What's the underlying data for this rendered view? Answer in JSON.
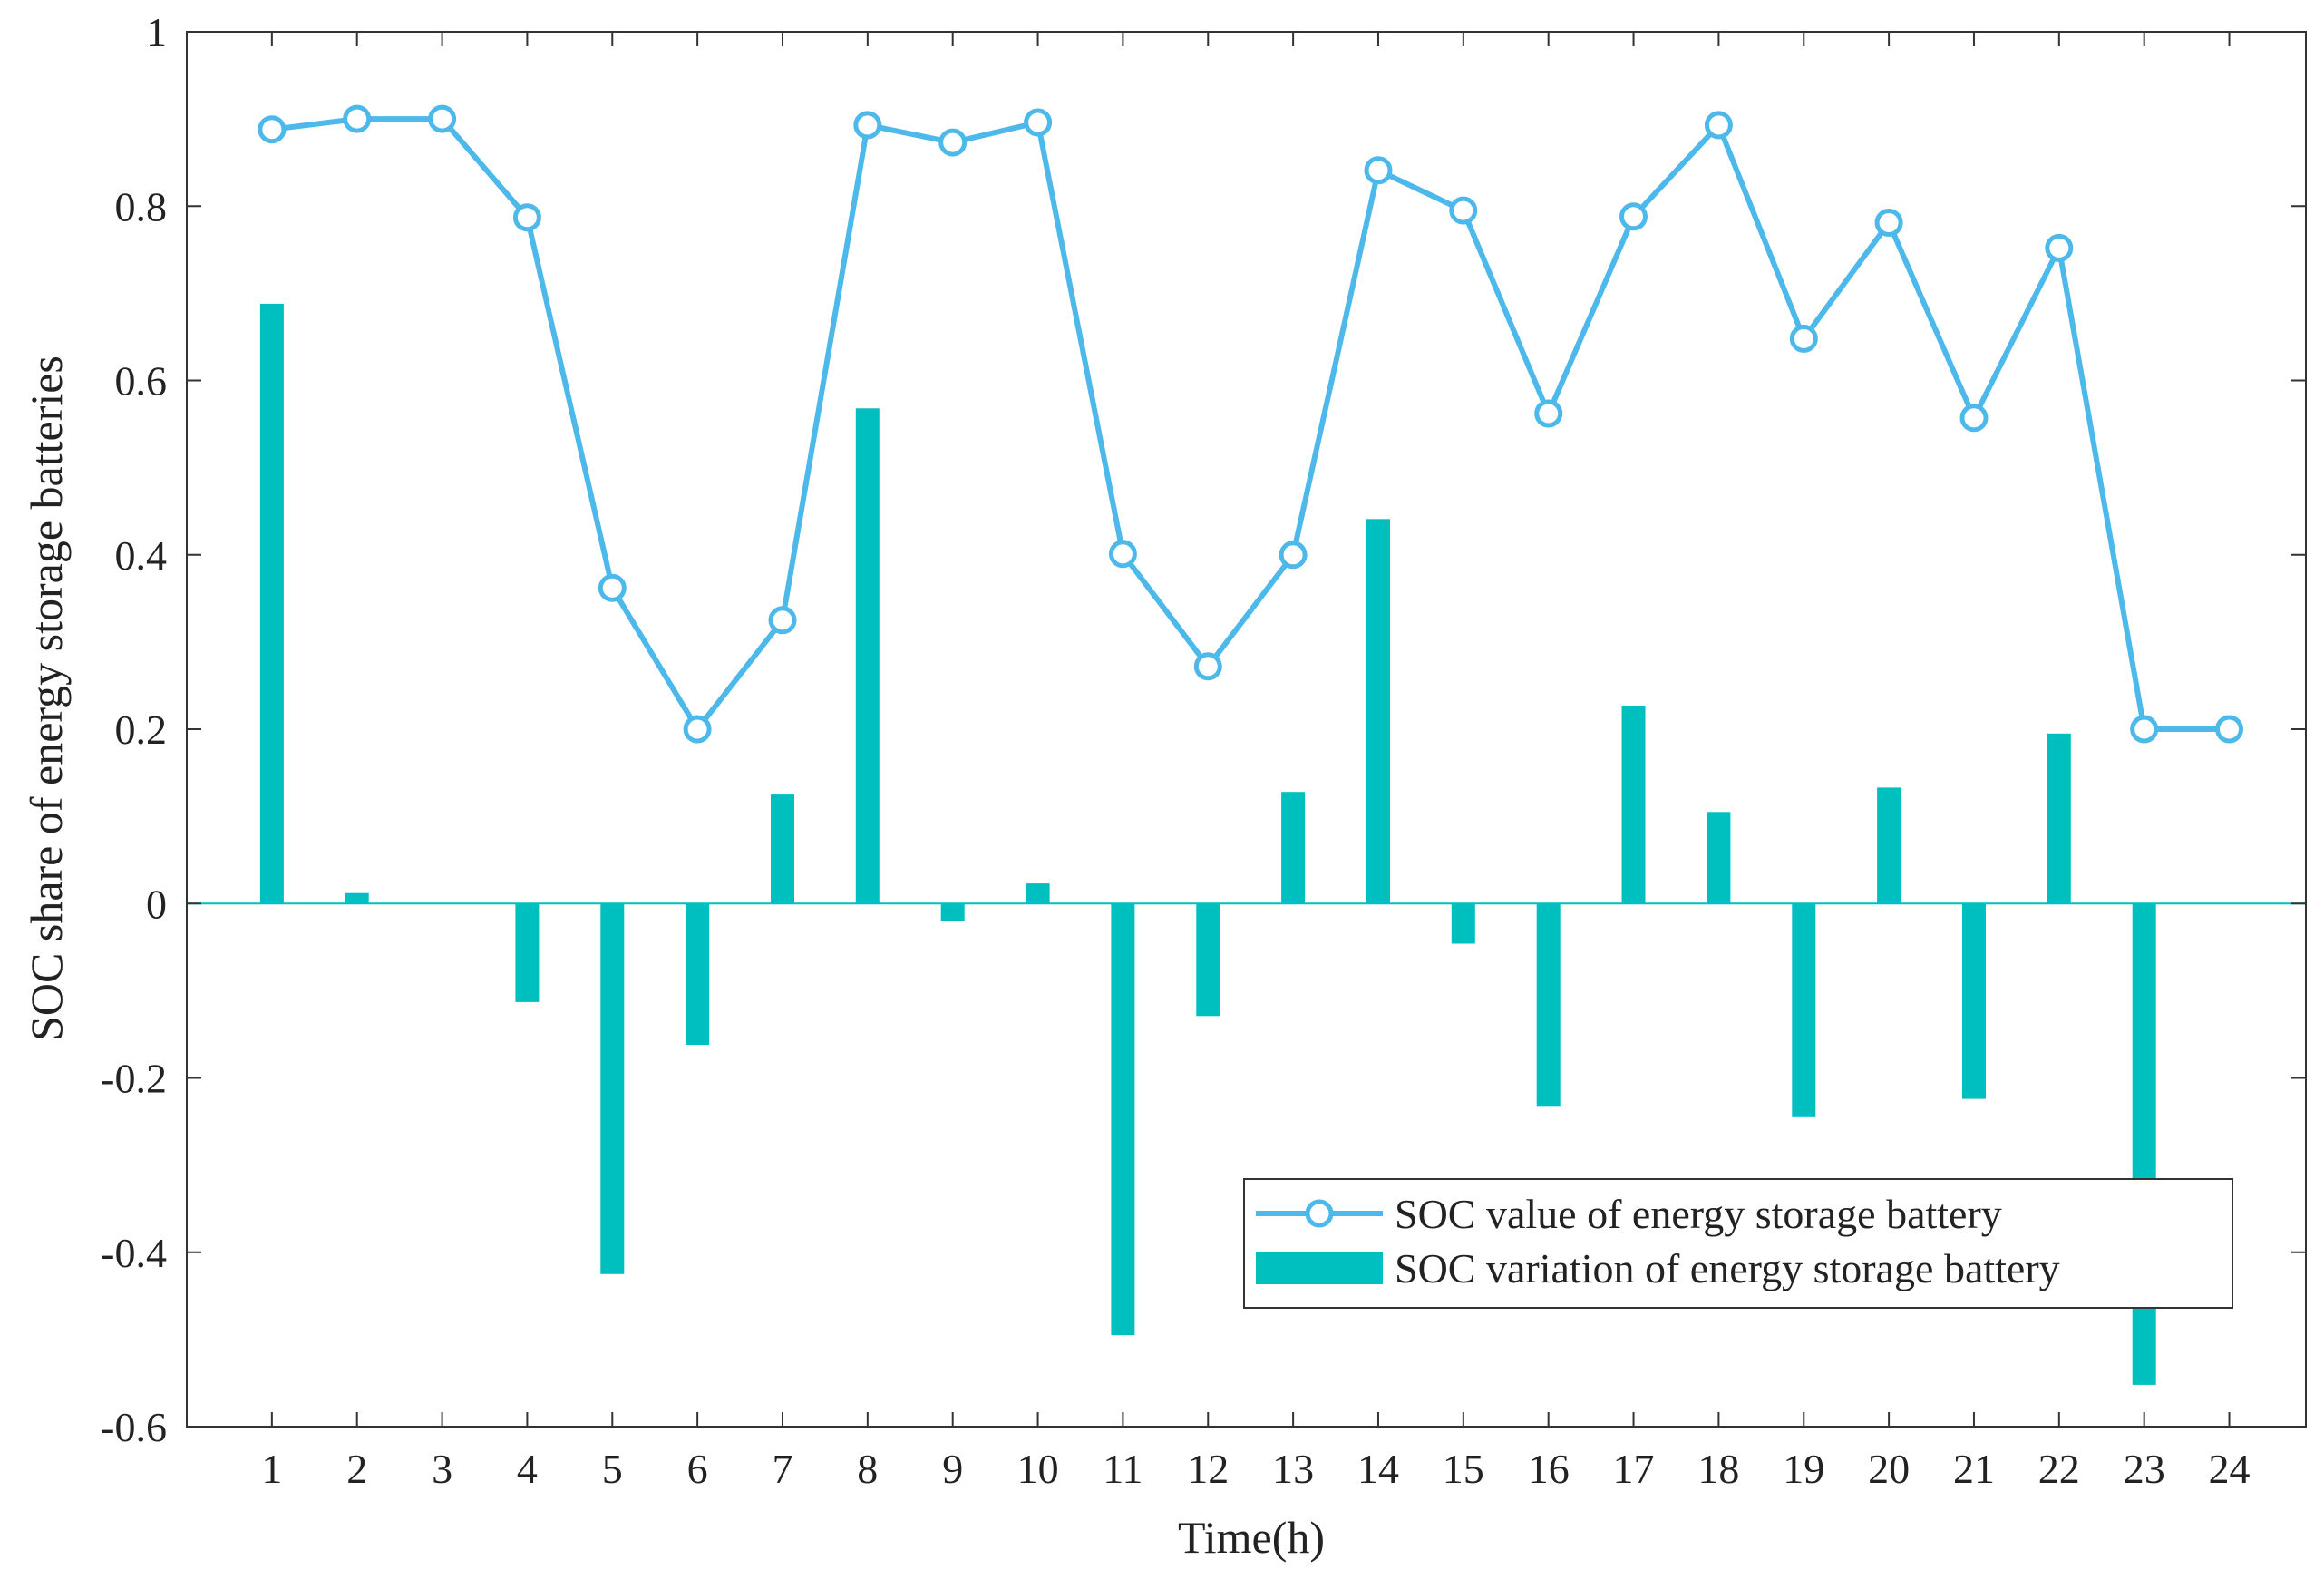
{
  "chart_data": {
    "type": "bar+line",
    "title": "",
    "xlabel": "Time(h)",
    "ylabel": "SOC share of energy storage batteries",
    "ylim": [
      -0.6,
      1.0
    ],
    "xlim": [
      0,
      24.9
    ],
    "grid": false,
    "legend_position": "bottom-right",
    "categories": [
      "1",
      "2",
      "3",
      "4",
      "5",
      "6",
      "7",
      "8",
      "9",
      "10",
      "11",
      "12",
      "13",
      "14",
      "15",
      "16",
      "17",
      "18",
      "19",
      "20",
      "21",
      "22",
      "23",
      "24"
    ],
    "yticks": [
      "-0.6",
      "-0.4",
      "-0.2",
      "0",
      "0.2",
      "0.4",
      "0.6",
      "0.8",
      "1"
    ],
    "series": [
      {
        "name": "SOC value of energy storage battery",
        "type": "line",
        "marker": "circle",
        "color": "#4db8ea",
        "values": [
          0.888,
          0.9,
          0.9,
          0.787,
          0.362,
          0.2,
          0.325,
          0.893,
          0.873,
          0.896,
          0.401,
          0.272,
          0.4,
          0.841,
          0.795,
          0.562,
          0.788,
          0.893,
          0.648,
          0.781,
          0.557,
          0.752,
          0.2,
          0.2
        ]
      },
      {
        "name": "SOC variation of energy storage battery",
        "type": "bar",
        "color": "#00bfbf",
        "values": [
          0.688,
          0.012,
          0.0,
          -0.113,
          -0.425,
          -0.162,
          0.125,
          0.568,
          -0.02,
          0.023,
          -0.495,
          -0.129,
          0.128,
          0.441,
          -0.046,
          -0.233,
          0.227,
          0.105,
          -0.245,
          0.133,
          -0.224,
          0.195,
          -0.552,
          0.0
        ]
      }
    ]
  }
}
